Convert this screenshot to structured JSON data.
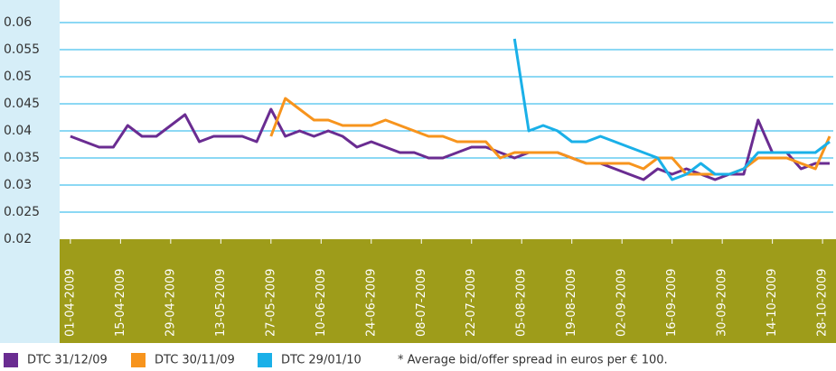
{
  "chart_data": {
    "type": "line",
    "x": [
      "01-04-2009",
      "05-04-2009",
      "09-04-2009",
      "13-04-2009",
      "17-04-2009",
      "21-04-2009",
      "25-04-2009",
      "29-04-2009",
      "03-05-2009",
      "07-05-2009",
      "11-05-2009",
      "15-05-2009",
      "19-05-2009",
      "23-05-2009",
      "27-05-2009",
      "31-05-2009",
      "04-06-2009",
      "08-06-2009",
      "12-06-2009",
      "16-06-2009",
      "20-06-2009",
      "24-06-2009",
      "28-06-2009",
      "02-07-2009",
      "06-07-2009",
      "10-07-2009",
      "14-07-2009",
      "18-07-2009",
      "22-07-2009",
      "26-07-2009",
      "30-07-2009",
      "03-08-2009",
      "07-08-2009",
      "11-08-2009",
      "15-08-2009",
      "19-08-2009",
      "23-08-2009",
      "27-08-2009",
      "31-08-2009",
      "04-09-2009",
      "08-09-2009",
      "12-09-2009",
      "16-09-2009",
      "20-09-2009",
      "24-09-2009",
      "28-09-2009",
      "02-10-2009",
      "06-10-2009",
      "10-10-2009",
      "14-10-2009",
      "18-10-2009",
      "22-10-2009",
      "26-10-2009",
      "30-10-2009"
    ],
    "series": [
      {
        "name": "DTC 31/12/09",
        "color": "#6a2c91",
        "values": [
          0.039,
          0.038,
          0.037,
          0.037,
          0.041,
          0.039,
          0.039,
          0.041,
          0.043,
          0.038,
          0.039,
          0.039,
          0.039,
          0.038,
          0.044,
          0.039,
          0.04,
          0.039,
          0.04,
          0.039,
          0.037,
          0.038,
          0.037,
          0.036,
          0.036,
          0.035,
          0.035,
          0.036,
          0.037,
          0.037,
          0.036,
          0.035,
          0.036,
          0.036,
          0.036,
          0.035,
          0.034,
          0.034,
          0.033,
          0.032,
          0.031,
          0.033,
          0.032,
          0.033,
          0.032,
          0.031,
          0.032,
          0.032,
          0.042,
          0.036,
          0.036,
          0.033,
          0.034,
          0.034
        ]
      },
      {
        "name": "DTC 30/11/09",
        "color": "#f7941d",
        "values": [
          null,
          null,
          null,
          null,
          null,
          null,
          null,
          null,
          null,
          null,
          null,
          null,
          null,
          null,
          0.039,
          0.046,
          0.044,
          0.042,
          0.042,
          0.041,
          0.041,
          0.041,
          0.042,
          0.041,
          0.04,
          0.039,
          0.039,
          0.038,
          0.038,
          0.038,
          0.035,
          0.036,
          0.036,
          0.036,
          0.036,
          0.035,
          0.034,
          0.034,
          0.034,
          0.034,
          0.033,
          0.035,
          0.035,
          0.032,
          0.032,
          0.032,
          0.032,
          0.033,
          0.035,
          0.035,
          0.035,
          0.034,
          0.033,
          0.039
        ]
      },
      {
        "name": "DTC 29/01/10",
        "color": "#1ab0e8",
        "values": [
          null,
          null,
          null,
          null,
          null,
          null,
          null,
          null,
          null,
          null,
          null,
          null,
          null,
          null,
          null,
          null,
          null,
          null,
          null,
          null,
          null,
          null,
          null,
          null,
          null,
          null,
          null,
          null,
          null,
          null,
          null,
          0.057,
          0.04,
          0.041,
          0.04,
          0.038,
          0.038,
          0.039,
          0.038,
          0.037,
          0.036,
          0.035,
          0.031,
          0.032,
          0.034,
          0.032,
          0.032,
          0.033,
          0.036,
          0.036,
          0.036,
          0.036,
          0.036,
          0.038
        ]
      }
    ],
    "xlim": [
      "29-03-2009",
      "31-10-2009"
    ],
    "xticks": [
      "01-04-2009",
      "15-04-2009",
      "29-04-2009",
      "13-05-2009",
      "27-05-2009",
      "10-06-2009",
      "24-06-2009",
      "08-07-2009",
      "22-07-2009",
      "05-08-2009",
      "19-08-2009",
      "02-09-2009",
      "16-09-2009",
      "30-09-2009",
      "14-10-2009",
      "28-10-2009"
    ],
    "ylim": [
      0.02,
      0.06
    ],
    "yticks": [
      0.02,
      0.025,
      0.03,
      0.035,
      0.04,
      0.045,
      0.05,
      0.055,
      0.06
    ],
    "grid": true,
    "annotation": "* Average bid/offer spread in euros per € 100."
  }
}
